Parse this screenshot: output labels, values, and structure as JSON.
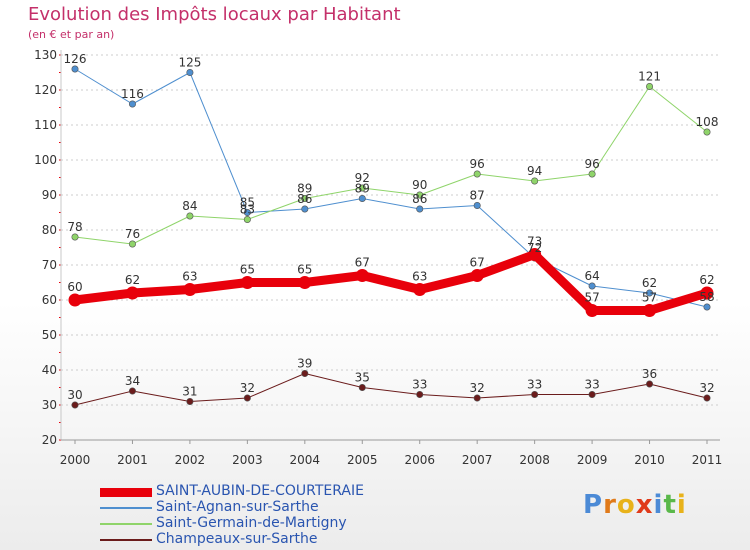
{
  "chart_data": {
    "type": "line",
    "title": "Evolution des Impôts locaux par Habitant",
    "subtitle": "(en € et par an)",
    "x": [
      "2000",
      "2001",
      "2002",
      "2003",
      "2004",
      "2005",
      "2006",
      "2007",
      "2008",
      "2009",
      "2010",
      "2011"
    ],
    "ylim": [
      20,
      130
    ],
    "yticks": [
      "20",
      "30",
      "40",
      "50",
      "60",
      "70",
      "80",
      "90",
      "100",
      "110",
      "120",
      "130"
    ],
    "grid": "horizontal dashed",
    "legend_position": "bottom-left",
    "series": [
      {
        "name": "Saint-Agnan-sur-Sarthe",
        "color": "#4f8fcf",
        "line_width": "thin",
        "values": [
          126,
          116,
          125,
          85,
          86,
          89,
          86,
          87,
          72,
          64,
          62,
          58
        ],
        "labels": [
          "126",
          "116",
          "125",
          "85",
          "86",
          "89",
          "86",
          "87",
          "72",
          "64",
          "62",
          "58"
        ]
      },
      {
        "name": "Saint-Germain-de-Martigny",
        "color": "#8fd46a",
        "line_width": "thin",
        "values": [
          78,
          76,
          84,
          83,
          89,
          92,
          90,
          96,
          94,
          96,
          121,
          108
        ],
        "labels": [
          "78",
          "76",
          "84",
          "83",
          "89",
          "92",
          "90",
          "96",
          "94",
          "96",
          "121",
          "108"
        ]
      },
      {
        "name": "Champeaux-sur-Sarthe",
        "color": "#6b1c1c",
        "line_width": "thin",
        "values": [
          30,
          34,
          31,
          32,
          39,
          35,
          33,
          32,
          33,
          33,
          36,
          32
        ],
        "labels": [
          "30",
          "34",
          "31",
          "32",
          "39",
          "35",
          "33",
          "32",
          "33",
          "33",
          "36",
          "32"
        ]
      },
      {
        "name": "SAINT-AUBIN-DE-COURTERAIE",
        "color": "#e8000b",
        "line_width": "thick",
        "values": [
          60,
          62,
          63,
          65,
          65,
          67,
          63,
          67,
          73,
          57,
          57,
          62
        ],
        "labels": [
          "60",
          "62",
          "63",
          "65",
          "65",
          "67",
          "63",
          "67",
          "73",
          "57",
          "57",
          "62"
        ]
      }
    ],
    "legend": [
      {
        "name": "SAINT-AUBIN-DE-COURTERAIE",
        "color": "#e8000b",
        "line_width": "thick"
      },
      {
        "name": "Saint-Agnan-sur-Sarthe",
        "color": "#4f8fcf",
        "line_width": "thin"
      },
      {
        "name": "Saint-Germain-de-Martigny",
        "color": "#8fd46a",
        "line_width": "thin"
      },
      {
        "name": "Champeaux-sur-Sarthe",
        "color": "#6b1c1c",
        "line_width": "thin"
      }
    ]
  },
  "brand": {
    "logo_letters": [
      "P",
      "r",
      "o",
      "x",
      "i",
      "t",
      "i"
    ],
    "logo_colors": [
      "#4b8ad6",
      "#e07a1a",
      "#e8b21a",
      "#e03a1a",
      "#4b8ad6",
      "#5ab84a",
      "#e8b21a"
    ]
  }
}
